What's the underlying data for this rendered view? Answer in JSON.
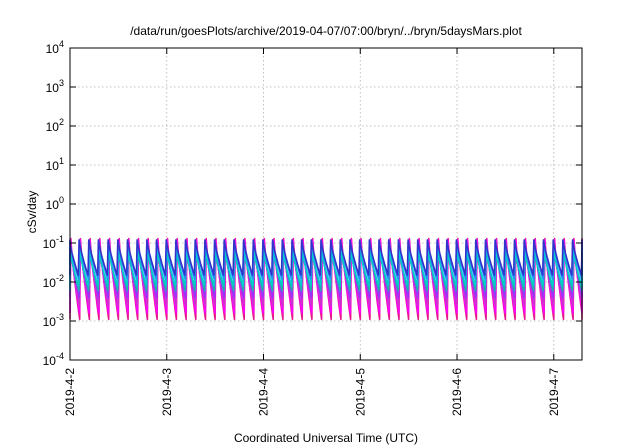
{
  "chart_data": {
    "type": "line",
    "title": "/data/run/goesPlots/archive/2019-04-07/07:00/bryn/../bryn/5daysMars.plot",
    "xlabel": "Coordinated Universal Time (UTC)",
    "ylabel": "cSv/day",
    "yscale": "log",
    "ylim": [
      0.0001,
      10000
    ],
    "y_ticks": [
      {
        "value": 0.0001,
        "base": "10",
        "exp": "-4"
      },
      {
        "value": 0.001,
        "base": "10",
        "exp": "-3"
      },
      {
        "value": 0.01,
        "base": "10",
        "exp": "-2"
      },
      {
        "value": 0.1,
        "base": "10",
        "exp": "-1"
      },
      {
        "value": 1,
        "base": "10",
        "exp": "0"
      },
      {
        "value": 10,
        "base": "10",
        "exp": "1"
      },
      {
        "value": 100,
        "base": "10",
        "exp": "2"
      },
      {
        "value": 1000,
        "base": "10",
        "exp": "3"
      },
      {
        "value": 10000,
        "base": "10",
        "exp": "4"
      }
    ],
    "xlim": [
      "2019-04-02T00:00",
      "2019-04-07T07:00"
    ],
    "x_ticks": [
      {
        "value": "2019-04-02T00:00",
        "label": "2019-4-2"
      },
      {
        "value": "2019-04-03T00:00",
        "label": "2019-4-3"
      },
      {
        "value": "2019-04-04T00:00",
        "label": "2019-4-4"
      },
      {
        "value": "2019-04-05T00:00",
        "label": "2019-4-5"
      },
      {
        "value": "2019-04-06T00:00",
        "label": "2019-4-6"
      },
      {
        "value": "2019-04-07T00:00",
        "label": "2019-4-7"
      }
    ],
    "grid": true,
    "cycle_hours": 2.4,
    "series": [
      {
        "color": "#e8188c",
        "max": 0.13,
        "min": 0.0011
      },
      {
        "color": "#ff00ff",
        "max": 0.12,
        "min": 0.0016
      },
      {
        "color": "#cc33cc",
        "max": 0.1,
        "min": 0.0025
      },
      {
        "color": "#9933ff",
        "max": 0.09,
        "min": 0.004
      },
      {
        "color": "#20b2aa",
        "max": 0.075,
        "min": 0.006
      },
      {
        "color": "#00cccc",
        "max": 0.065,
        "min": 0.008
      },
      {
        "color": "#1e90ff",
        "max": 0.11,
        "min": 0.012
      },
      {
        "color": "#3333cc",
        "max": 0.12,
        "min": 0.015
      }
    ]
  }
}
